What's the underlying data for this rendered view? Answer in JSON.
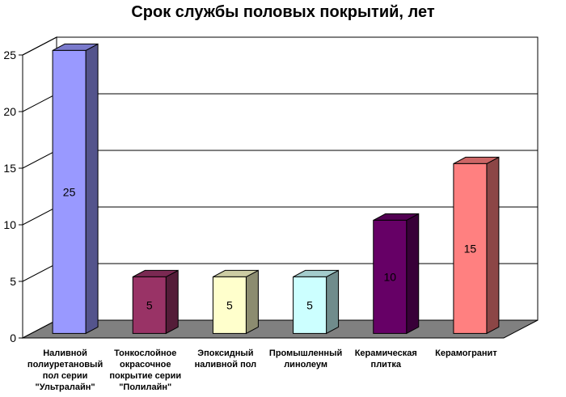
{
  "chart_data": {
    "type": "bar",
    "title": "Срок службы половых покрытий, лет",
    "xlabel": "",
    "ylabel": "",
    "ylim": [
      0,
      25
    ],
    "yticks": [
      0,
      5,
      10,
      15,
      20,
      25
    ],
    "grid": true,
    "legend": "none",
    "categories": [
      [
        "Наливной",
        "полиуретановый",
        "пол серии",
        "\"Ультралайн\""
      ],
      [
        "Тонкослойное",
        "окрасочное",
        "покрытие серии",
        "\"Полилайн\""
      ],
      [
        "Эпоксидный",
        "наливной пол"
      ],
      [
        "Промышленный",
        "линолеум"
      ],
      [
        "Керамическая",
        "плитка"
      ],
      [
        "Керамогранит"
      ]
    ],
    "values": [
      25,
      5,
      5,
      5,
      10,
      15
    ],
    "data_labels": [
      "25",
      "5",
      "5",
      "5",
      "10",
      "15"
    ],
    "colors": [
      "#9999ff",
      "#993366",
      "#ffffcc",
      "#ccffff",
      "#660066",
      "#ff8080"
    ]
  }
}
